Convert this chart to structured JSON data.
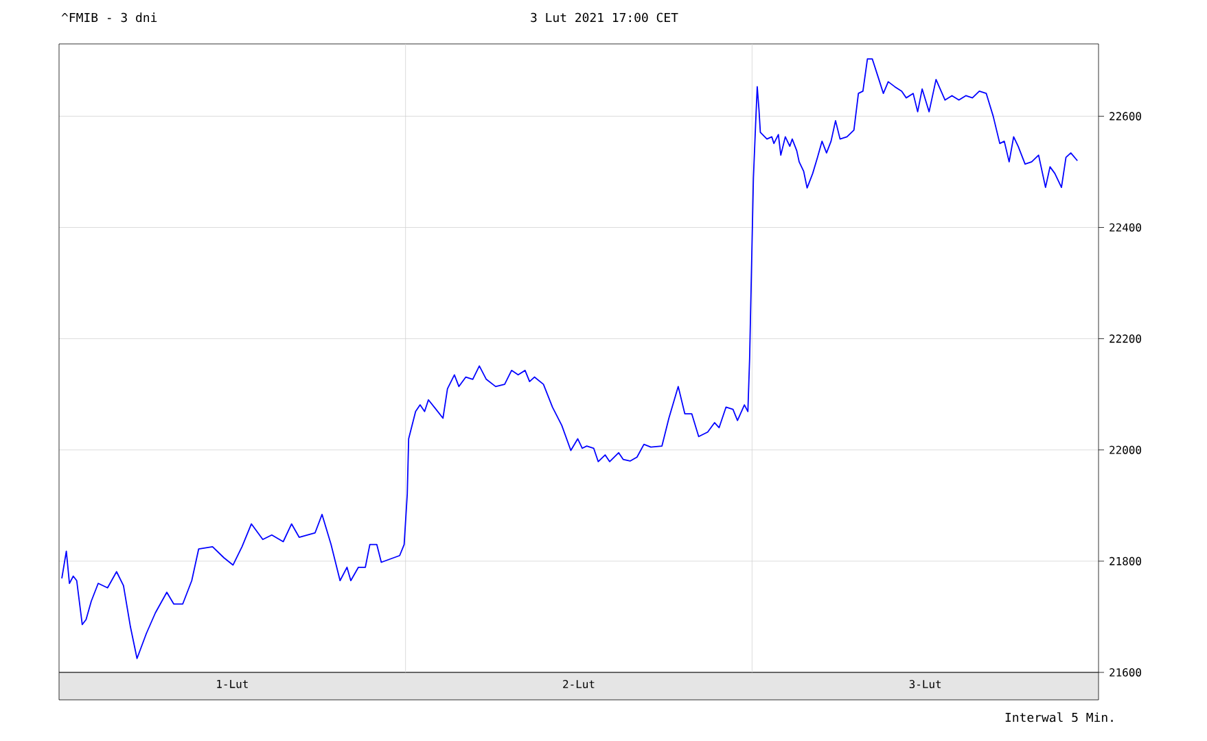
{
  "chart_data": {
    "type": "line",
    "title": "^FMIB - 3 dni",
    "subtitle": "3 Lut 2021 17:00 CET",
    "annotations": [
      "Interwal 5 Min."
    ],
    "xlim": [
      0,
      3
    ],
    "xticks": [
      {
        "value": 0.5,
        "label": "1-Lut"
      },
      {
        "value": 1,
        "label": null
      },
      {
        "value": 1.5,
        "label": "2-Lut"
      },
      {
        "value": 2,
        "label": null
      },
      {
        "value": 2.5,
        "label": "3-Lut"
      }
    ],
    "ylim": [
      21600,
      22730
    ],
    "yticks": [
      21600,
      21800,
      22000,
      22200,
      22400,
      22600
    ],
    "grid": true,
    "series": [
      {
        "color": "#0000ff",
        "x": [
          0.008,
          0.021,
          0.03,
          0.041,
          0.051,
          0.067,
          0.078,
          0.093,
          0.113,
          0.14,
          0.166,
          0.186,
          0.206,
          0.225,
          0.252,
          0.278,
          0.311,
          0.331,
          0.357,
          0.383,
          0.403,
          0.443,
          0.476,
          0.502,
          0.528,
          0.555,
          0.588,
          0.614,
          0.647,
          0.671,
          0.693,
          0.739,
          0.759,
          0.785,
          0.811,
          0.831,
          0.842,
          0.864,
          0.884,
          0.897,
          0.917,
          0.93,
          0.983,
          0.996,
          1.005,
          1.009,
          1.029,
          1.042,
          1.055,
          1.066,
          1.088,
          1.108,
          1.121,
          1.141,
          1.154,
          1.174,
          1.194,
          1.213,
          1.233,
          1.26,
          1.286,
          1.306,
          1.325,
          1.345,
          1.358,
          1.372,
          1.398,
          1.424,
          1.451,
          1.477,
          1.497,
          1.51,
          1.523,
          1.543,
          1.556,
          1.576,
          1.589,
          1.615,
          1.628,
          1.648,
          1.668,
          1.688,
          1.708,
          1.74,
          1.76,
          1.787,
          1.806,
          1.826,
          1.846,
          1.872,
          1.892,
          1.905,
          1.925,
          1.945,
          1.958,
          1.978,
          1.988,
          1.993,
          2.004,
          2.011,
          2.015,
          2.02,
          2.024,
          2.043,
          2.057,
          2.063,
          2.076,
          2.083,
          2.096,
          2.109,
          2.116,
          2.129,
          2.136,
          2.149,
          2.159,
          2.175,
          2.189,
          2.202,
          2.215,
          2.228,
          2.241,
          2.254,
          2.274,
          2.294,
          2.307,
          2.32,
          2.333,
          2.347,
          2.36,
          2.379,
          2.393,
          2.412,
          2.432,
          2.445,
          2.465,
          2.478,
          2.491,
          2.511,
          2.531,
          2.557,
          2.577,
          2.597,
          2.617,
          2.636,
          2.656,
          2.676,
          2.696,
          2.715,
          2.728,
          2.742,
          2.755,
          2.768,
          2.788,
          2.807,
          2.827,
          2.847,
          2.86,
          2.874,
          2.893,
          2.906,
          2.92,
          2.939
        ],
        "values": [
          21769,
          21818,
          21760,
          21773,
          21765,
          21686,
          21695,
          21728,
          21760,
          21752,
          21781,
          21756,
          21682,
          21625,
          21670,
          21707,
          21744,
          21723,
          21723,
          21765,
          21822,
          21826,
          21806,
          21793,
          21826,
          21867,
          21839,
          21847,
          21835,
          21867,
          21843,
          21851,
          21884,
          21830,
          21765,
          21789,
          21765,
          21789,
          21789,
          21830,
          21830,
          21798,
          21810,
          21830,
          21921,
          22020,
          22069,
          22081,
          22069,
          22090,
          22073,
          22057,
          22110,
          22135,
          22114,
          22131,
          22127,
          22151,
          22127,
          22114,
          22118,
          22143,
          22135,
          22143,
          22123,
          22131,
          22118,
          22077,
          22044,
          21999,
          22020,
          22003,
          22007,
          22003,
          21979,
          21991,
          21979,
          21995,
          21983,
          21980,
          21987,
          22010,
          22005,
          22007,
          22057,
          22114,
          22065,
          22065,
          22024,
          22032,
          22049,
          22040,
          22077,
          22073,
          22053,
          22081,
          22069,
          22164,
          22489,
          22596,
          22653,
          22612,
          22571,
          22559,
          22563,
          22551,
          22567,
          22530,
          22563,
          22546,
          22559,
          22538,
          22518,
          22501,
          22471,
          22497,
          22526,
          22555,
          22534,
          22555,
          22592,
          22559,
          22563,
          22575,
          22641,
          22645,
          22703,
          22703,
          22678,
          22641,
          22662,
          22653,
          22645,
          22633,
          22641,
          22608,
          22649,
          22608,
          22666,
          22629,
          22637,
          22629,
          22637,
          22633,
          22645,
          22641,
          22600,
          22551,
          22555,
          22518,
          22563,
          22546,
          22514,
          22518,
          22530,
          22472,
          22509,
          22497,
          22472,
          22526,
          22534,
          22520
        ]
      }
    ]
  }
}
